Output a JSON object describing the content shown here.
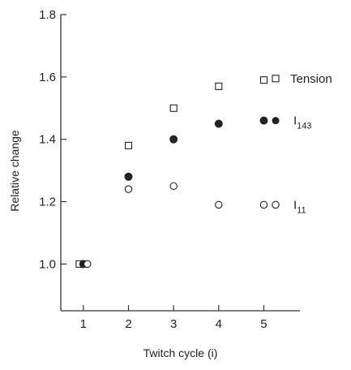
{
  "chart_data": {
    "type": "scatter",
    "xlabel": "Twitch cycle (i)",
    "ylabel": "Relative change",
    "xlim": [
      0.5,
      5.8
    ],
    "ylim": [
      0.85,
      1.8
    ],
    "x_ticks": [
      1,
      2,
      3,
      4,
      5
    ],
    "y_ticks": [
      1.0,
      1.2,
      1.4,
      1.6,
      1.8
    ],
    "y_tick_labels": [
      "1.0",
      "1.2",
      "1.4",
      "1.6",
      "1.8"
    ],
    "grid": false,
    "legend_placement": "right, labels beside last points",
    "series": [
      {
        "name": "Tension",
        "marker": "open-square",
        "x": [
          1,
          2,
          3,
          4,
          5
        ],
        "y": [
          1.0,
          1.38,
          1.5,
          1.57,
          1.59
        ]
      },
      {
        "name": "I143",
        "name_main": "I",
        "name_sub": "143",
        "marker": "filled-circle",
        "x": [
          1,
          2,
          3,
          4,
          5
        ],
        "y": [
          1.0,
          1.28,
          1.4,
          1.45,
          1.46
        ]
      },
      {
        "name": "I11",
        "name_main": "I",
        "name_sub": "11",
        "marker": "open-circle",
        "x": [
          1,
          2,
          3,
          4,
          5
        ],
        "y": [
          1.0,
          1.24,
          1.25,
          1.19,
          1.19
        ]
      }
    ]
  }
}
